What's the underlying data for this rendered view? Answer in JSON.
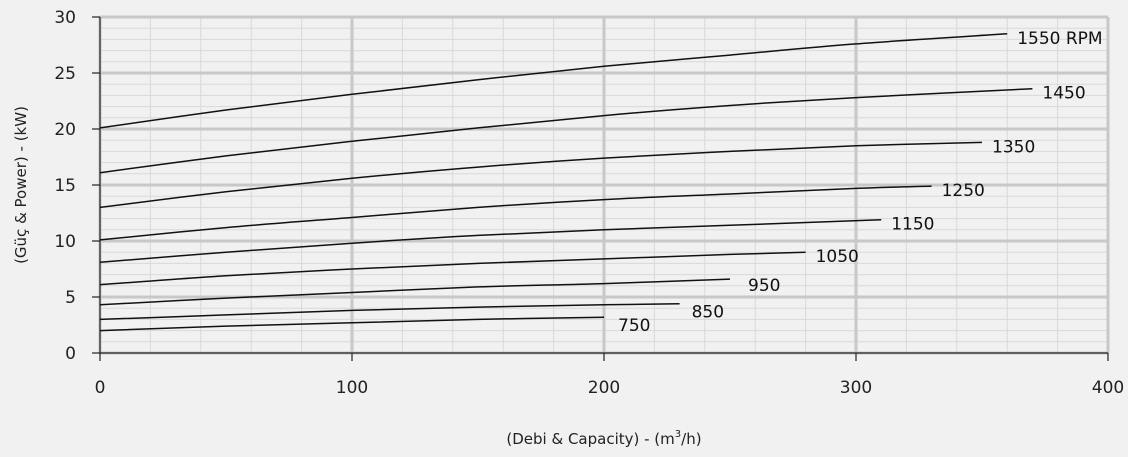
{
  "chart_data": {
    "type": "line",
    "xlabel_prefix": "(Debi & Capacity) - (m",
    "xlabel_sup": "3",
    "xlabel_suffix": "/h)",
    "ylabel": "(Güç & Power) - (kW)",
    "xlim": [
      0,
      400
    ],
    "ylim": [
      0,
      30
    ],
    "xticks": [
      "0",
      "100",
      "200",
      "300",
      "400"
    ],
    "yticks": [
      "0",
      "5",
      "10",
      "15",
      "20",
      "25",
      "30"
    ],
    "grid": true,
    "series": [
      {
        "name": "1550 RPM",
        "x": [
          0,
          50,
          100,
          150,
          200,
          250,
          300,
          360
        ],
        "y": [
          20.1,
          21.7,
          23.1,
          24.4,
          25.6,
          26.6,
          27.6,
          28.5
        ]
      },
      {
        "name": "1450",
        "x": [
          0,
          50,
          100,
          150,
          200,
          250,
          300,
          370
        ],
        "y": [
          16.1,
          17.6,
          18.9,
          20.1,
          21.2,
          22.1,
          22.8,
          23.6
        ]
      },
      {
        "name": "1350",
        "x": [
          0,
          50,
          100,
          150,
          200,
          250,
          300,
          350
        ],
        "y": [
          13.0,
          14.4,
          15.6,
          16.6,
          17.4,
          18.0,
          18.5,
          18.8
        ]
      },
      {
        "name": "1250",
        "x": [
          0,
          50,
          100,
          150,
          200,
          250,
          300,
          330
        ],
        "y": [
          10.1,
          11.2,
          12.1,
          13.0,
          13.7,
          14.2,
          14.7,
          14.9
        ]
      },
      {
        "name": "1150",
        "x": [
          0,
          50,
          100,
          150,
          200,
          250,
          310
        ],
        "y": [
          8.1,
          9.0,
          9.8,
          10.5,
          11.0,
          11.4,
          11.9
        ]
      },
      {
        "name": "1050",
        "x": [
          0,
          50,
          100,
          150,
          200,
          250,
          280
        ],
        "y": [
          6.1,
          6.9,
          7.5,
          8.0,
          8.4,
          8.8,
          9.0
        ]
      },
      {
        "name": "950",
        "x": [
          0,
          50,
          100,
          150,
          200,
          250
        ],
        "y": [
          4.3,
          4.9,
          5.4,
          5.9,
          6.2,
          6.6
        ]
      },
      {
        "name": "850",
        "x": [
          0,
          50,
          100,
          150,
          200,
          230
        ],
        "y": [
          3.0,
          3.4,
          3.8,
          4.1,
          4.3,
          4.4
        ]
      },
      {
        "name": "750",
        "x": [
          0,
          50,
          100,
          150,
          200
        ],
        "y": [
          2.0,
          2.4,
          2.7,
          3.0,
          3.2
        ]
      }
    ]
  }
}
